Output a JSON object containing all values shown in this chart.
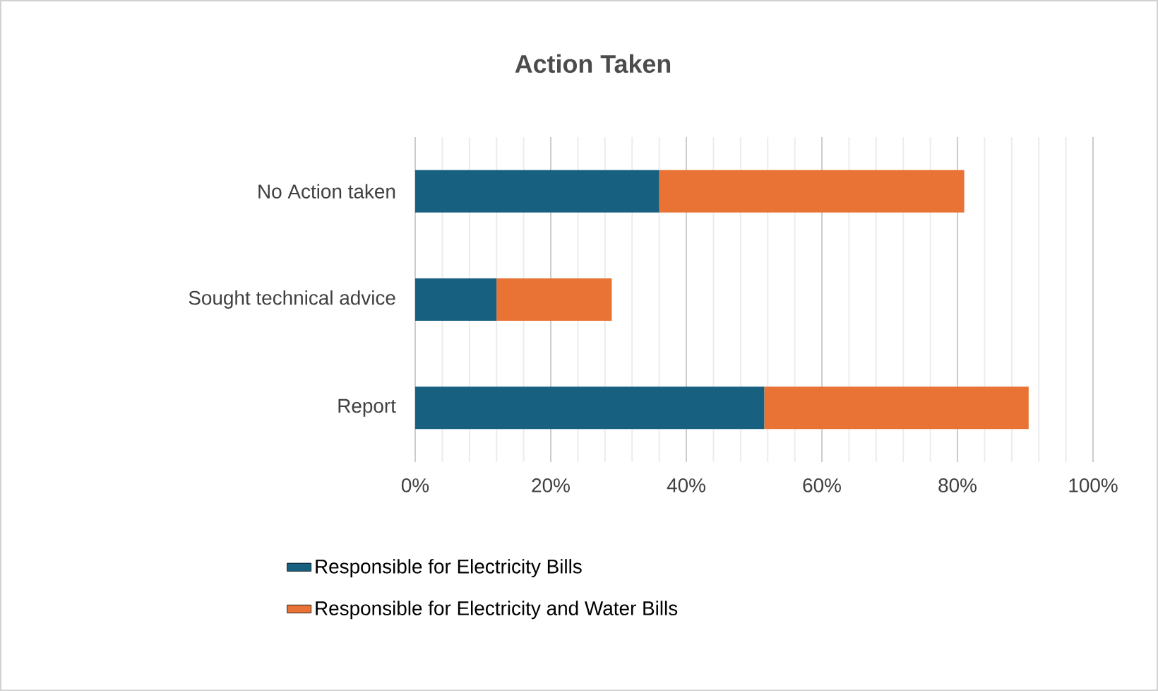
{
  "chart_data": {
    "type": "bar",
    "orientation": "horizontal",
    "stacked": true,
    "title": "Action Taken",
    "categories": [
      "No Action taken",
      "Sought technical advice",
      "Report"
    ],
    "series": [
      {
        "name": "Responsible for Electricity Bills",
        "color": "#17607f",
        "values": [
          36,
          12,
          51.5
        ]
      },
      {
        "name": "Responsible for Electricity and Water Bills",
        "color": "#e97334",
        "values": [
          45,
          17,
          39
        ]
      }
    ],
    "xlim": [
      0,
      100
    ],
    "xticks": [
      {
        "value": 0,
        "label": "0%"
      },
      {
        "value": 20,
        "label": "20%"
      },
      {
        "value": 40,
        "label": "40%"
      },
      {
        "value": 60,
        "label": "60%"
      },
      {
        "value": 80,
        "label": "80%"
      },
      {
        "value": 100,
        "label": "100%"
      }
    ],
    "grid": "x",
    "legend": "bottom"
  }
}
